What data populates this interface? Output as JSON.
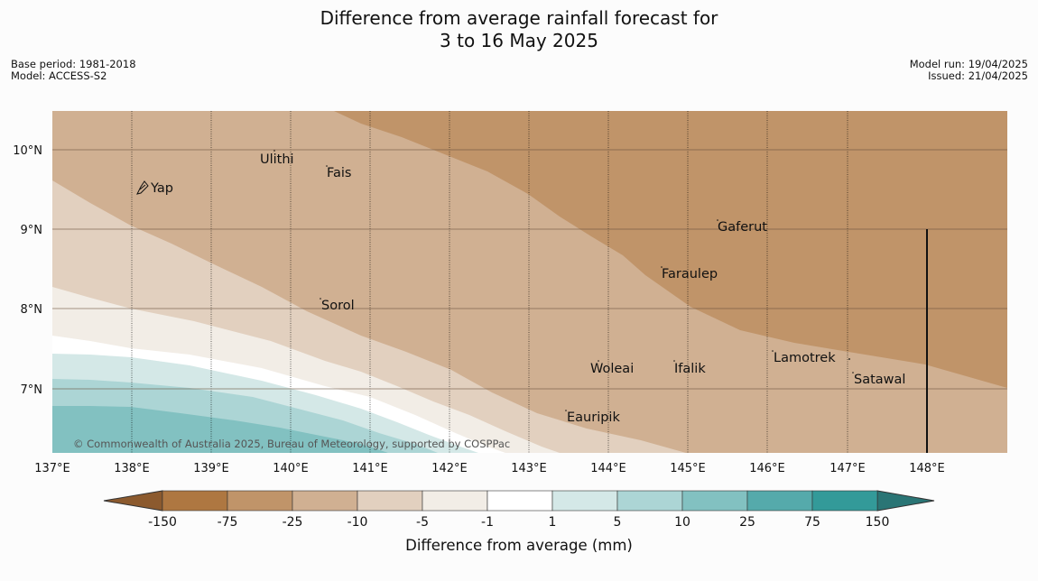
{
  "header": {
    "title_line1": "Difference from average rainfall forecast for",
    "title_line2": "3 to 16 May 2025",
    "base_period": "Base period: 1981-2018",
    "model": "Model: ACCESS-S2",
    "model_run": "Model run: 19/04/2025",
    "issued": "Issued: 21/04/2025"
  },
  "map": {
    "copyright": "© Commonwealth of Australia 2025, Bureau of Meteorology, supported by COSPPac",
    "lat_labels": [
      "10°N",
      "9°N",
      "8°N",
      "7°N"
    ],
    "lon_labels": [
      "137°E",
      "138°E",
      "139°E",
      "140°E",
      "141°E",
      "142°E",
      "143°E",
      "144°E",
      "145°E",
      "146°E",
      "147°E",
      "148°E"
    ],
    "places": [
      "Ulithi",
      "Fais",
      "Yap",
      "Gaferut",
      "Faraulep",
      "Sorol",
      "Lamotrek",
      "Woleai",
      "Ifalik",
      "Satawal",
      "Eauripik"
    ]
  },
  "colorbar": {
    "label": "Difference from average (mm)",
    "ticks": [
      "-150",
      "-75",
      "-25",
      "-10",
      "-5",
      "-1",
      "1",
      "5",
      "10",
      "25",
      "75",
      "150"
    ],
    "colors": {
      "lt_-150": "#8c5a2e",
      "-150_-75": "#ae7741",
      "-75_-25": "#c09469",
      "-25_-10": "#d0b092",
      "-10_-5": "#e2d0bf",
      "-5_-1": "#f2ede6",
      "-1_1": "#ffffff",
      "1_5": "#d4e8e7",
      "5_10": "#acd5d5",
      "10_25": "#82c1c1",
      "25_75": "#55aaab",
      "75_150": "#339a99",
      "gt_150": "#2a7575"
    }
  }
}
